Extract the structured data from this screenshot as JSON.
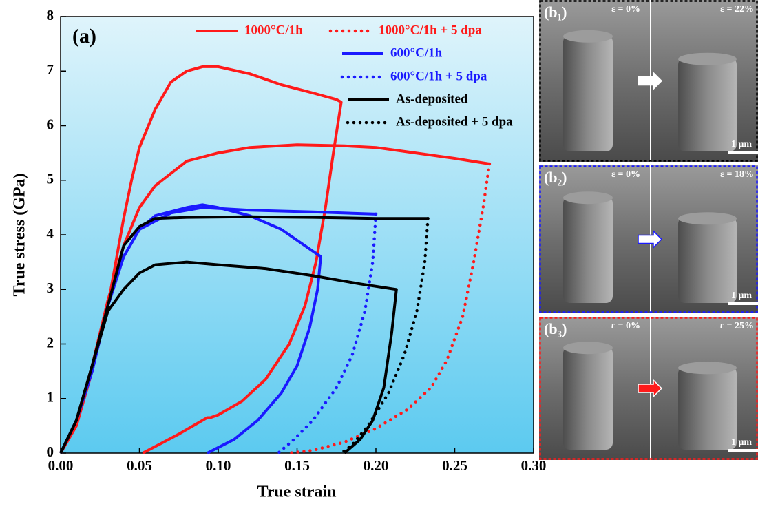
{
  "chart_data": {
    "type": "line",
    "panel_label": "(a)",
    "x_label": "True strain",
    "y_label": "True stress (GPa)",
    "xlim": [
      0,
      0.3
    ],
    "ylim": [
      0,
      8
    ],
    "xticks": [
      {
        "value": 0,
        "label": "0.00"
      },
      {
        "value": 0.05,
        "label": "0.05"
      },
      {
        "value": 0.1,
        "label": "0.10"
      },
      {
        "value": 0.15,
        "label": "0.15"
      },
      {
        "value": 0.2,
        "label": "0.20"
      },
      {
        "value": 0.25,
        "label": "0.25"
      },
      {
        "value": 0.3,
        "label": "0.30"
      }
    ],
    "yticks": [
      0,
      1,
      2,
      3,
      4,
      5,
      6,
      7,
      8
    ],
    "series": [
      {
        "name": "1000°C/1h",
        "color": "#ff1a1a",
        "line_style": "solid",
        "x": [
          0,
          0.01,
          0.02,
          0.03,
          0.035,
          0.04,
          0.045,
          0.05,
          0.06,
          0.07,
          0.08,
          0.09,
          0.1,
          0.12,
          0.14,
          0.16,
          0.175,
          0.178,
          0.173,
          0.168,
          0.162,
          0.155,
          0.145,
          0.13,
          0.115,
          0.1,
          0.095,
          0.093,
          0.075,
          0.06,
          0.052
        ],
        "values": [
          0,
          0.5,
          1.5,
          2.7,
          3.5,
          4.3,
          5.0,
          5.6,
          6.3,
          6.8,
          7.0,
          7.08,
          7.08,
          6.95,
          6.75,
          6.6,
          6.48,
          6.43,
          5.5,
          4.5,
          3.5,
          2.7,
          2.0,
          1.35,
          0.95,
          0.7,
          0.65,
          0.65,
          0.35,
          0.12,
          0
        ]
      },
      {
        "color": "#ff1a1a",
        "line_style": "solid",
        "x": [
          0,
          0.01,
          0.02,
          0.03,
          0.04,
          0.05,
          0.06,
          0.08,
          0.1,
          0.12,
          0.15,
          0.18,
          0.2,
          0.22,
          0.25,
          0.272
        ],
        "values": [
          0,
          0.6,
          1.6,
          2.8,
          3.8,
          4.5,
          4.9,
          5.35,
          5.5,
          5.6,
          5.65,
          5.63,
          5.6,
          5.52,
          5.4,
          5.3
        ]
      },
      {
        "name": "1000°C/1h + 5 dpa",
        "color": "#ff1a1a",
        "line_style": "dotted",
        "x": [
          0.272,
          0.268,
          0.262,
          0.255,
          0.245,
          0.235,
          0.22,
          0.2,
          0.18,
          0.16,
          0.145
        ],
        "values": [
          5.3,
          4.5,
          3.5,
          2.5,
          1.7,
          1.2,
          0.8,
          0.45,
          0.2,
          0.05,
          0
        ]
      },
      {
        "name": "600°C/1h",
        "color": "#1a1aff",
        "line_style": "solid",
        "x": [
          0,
          0.01,
          0.02,
          0.03,
          0.04,
          0.05,
          0.06,
          0.08,
          0.09,
          0.1,
          0.12,
          0.14,
          0.155,
          0.165,
          0.163,
          0.158,
          0.15,
          0.14,
          0.125,
          0.11,
          0.093
        ],
        "values": [
          0,
          0.6,
          1.5,
          2.7,
          3.6,
          4.1,
          4.35,
          4.5,
          4.55,
          4.5,
          4.35,
          4.1,
          3.8,
          3.6,
          3.0,
          2.3,
          1.6,
          1.1,
          0.6,
          0.25,
          0
        ]
      },
      {
        "color": "#1a1aff",
        "line_style": "solid",
        "x": [
          0,
          0.01,
          0.02,
          0.03,
          0.04,
          0.05,
          0.07,
          0.09,
          0.12,
          0.16,
          0.2
        ],
        "values": [
          0,
          0.6,
          1.5,
          2.7,
          3.6,
          4.1,
          4.4,
          4.5,
          4.45,
          4.42,
          4.38
        ]
      },
      {
        "name": "600°C/1h + 5 dpa",
        "color": "#1a1aff",
        "line_style": "dotted",
        "x": [
          0.2,
          0.198,
          0.193,
          0.185,
          0.175,
          0.16,
          0.148,
          0.138
        ],
        "values": [
          4.38,
          3.5,
          2.6,
          1.8,
          1.2,
          0.6,
          0.25,
          0
        ]
      },
      {
        "name": "As-deposited",
        "color": "#000000",
        "line_style": "solid",
        "x": [
          0,
          0.01,
          0.02,
          0.03,
          0.04,
          0.05,
          0.06,
          0.08,
          0.1,
          0.13,
          0.16,
          0.19,
          0.213,
          0.21,
          0.205,
          0.198,
          0.19,
          0.18
        ],
        "values": [
          0,
          0.6,
          1.6,
          2.6,
          3.0,
          3.3,
          3.45,
          3.5,
          3.45,
          3.38,
          3.25,
          3.1,
          3.0,
          2.2,
          1.2,
          0.6,
          0.25,
          0
        ]
      },
      {
        "color": "#000000",
        "line_style": "solid",
        "x": [
          0,
          0.01,
          0.02,
          0.03,
          0.04,
          0.05,
          0.06,
          0.08,
          0.12,
          0.16,
          0.2,
          0.233
        ],
        "values": [
          0,
          0.6,
          1.6,
          2.7,
          3.8,
          4.15,
          4.3,
          4.32,
          4.33,
          4.32,
          4.3,
          4.3
        ]
      },
      {
        "name": "As-deposited + 5 dpa",
        "color": "#000000",
        "line_style": "dotted",
        "x": [
          0.233,
          0.231,
          0.226,
          0.218,
          0.208,
          0.195,
          0.185,
          0.178
        ],
        "values": [
          4.3,
          3.5,
          2.6,
          1.8,
          1.1,
          0.5,
          0.15,
          0
        ]
      }
    ]
  },
  "image_panels": [
    {
      "label": "(b₁)",
      "strain_before": "ε = 0%",
      "strain_after": "ε = 22%",
      "scale_bar": "1 μm",
      "border_color": "#000000",
      "arrow_color": "#ffffff"
    },
    {
      "label": "(b₂)",
      "strain_before": "ε = 0%",
      "strain_after": "ε = 18%",
      "scale_bar": "1 μm",
      "border_color": "#1a1aff",
      "arrow_color": "#ffffff"
    },
    {
      "label": "(b₃)",
      "strain_before": "ε = 0%",
      "strain_after": "ε = 25%",
      "scale_bar": "1 μm",
      "border_color": "#ff1a1a",
      "arrow_color": "#ff1a1a"
    }
  ]
}
